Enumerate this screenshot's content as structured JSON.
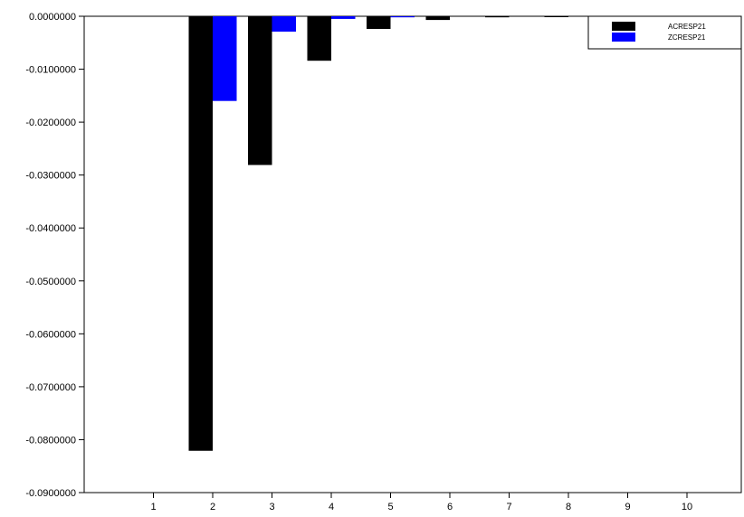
{
  "chart_data": {
    "type": "bar",
    "title": "",
    "xlabel": "",
    "ylabel": "",
    "categories": [
      "1",
      "2",
      "3",
      "4",
      "5",
      "6",
      "7",
      "8",
      "9",
      "10"
    ],
    "series": [
      {
        "name": "ACRESP21",
        "color": "#000000",
        "values": [
          0,
          -0.0821,
          -0.0281,
          -0.0084,
          -0.0024,
          -0.0007,
          -0.0002,
          -0.0001,
          0,
          0
        ]
      },
      {
        "name": "ZCRESP21",
        "color": "#0000ff",
        "values": [
          0,
          -0.016,
          -0.0029,
          -0.0005,
          -0.0002,
          0,
          0,
          0,
          0,
          0
        ]
      }
    ],
    "ylim": [
      -0.09,
      0
    ],
    "yticks": [
      "0.0000000",
      "-0.0100000",
      "-0.0200000",
      "-0.0300000",
      "-0.0400000",
      "-0.0500000",
      "-0.0600000",
      "-0.0700000",
      "-0.0800000",
      "-0.0900000"
    ],
    "ytick_values": [
      0,
      -0.01,
      -0.02,
      -0.03,
      -0.04,
      -0.05,
      -0.06,
      -0.07,
      -0.08,
      -0.09
    ],
    "grid": false,
    "legend_position": "top-right"
  }
}
